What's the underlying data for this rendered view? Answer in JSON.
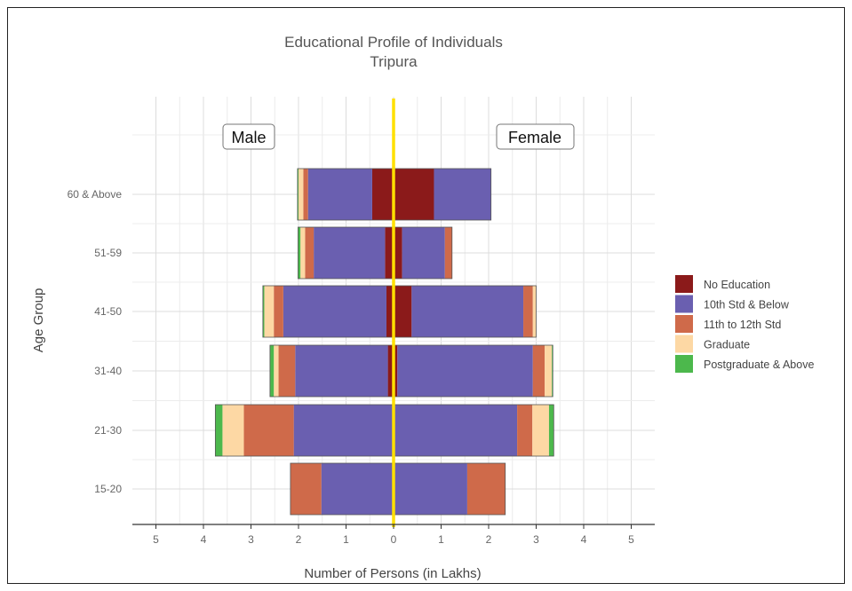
{
  "chart_data": {
    "type": "bar",
    "orientation": "horizontal-diverging",
    "title": "Educational Profile of Individuals",
    "subtitle": "Tripura",
    "xlabel": "Number of Persons (in Lakhs)",
    "ylabel": "Age Group",
    "xlim": [
      -5,
      5
    ],
    "x_ticks": [
      -5,
      -4,
      -3,
      -2,
      -1,
      0,
      1,
      2,
      3,
      4,
      5
    ],
    "x_tick_labels": [
      "5",
      "4",
      "3",
      "2",
      "1",
      "0",
      "1",
      "2",
      "3",
      "4",
      "5"
    ],
    "categories": [
      "15-20",
      "21-30",
      "31-40",
      "41-50",
      "51-59",
      "60 & Above"
    ],
    "side_labels": {
      "left": "Male",
      "right": "Female"
    },
    "legend_position": "right",
    "grid": true,
    "series": [
      {
        "name": "No Education",
        "color": "#8b1a1a",
        "male": [
          0,
          0,
          0.12,
          0.15,
          0.18,
          0.45
        ],
        "female": [
          0,
          0,
          0.08,
          0.38,
          0.18,
          0.85
        ]
      },
      {
        "name": "10th Std & Below",
        "color": "#6a5fb0",
        "male": [
          1.52,
          2.1,
          1.95,
          2.17,
          1.5,
          1.35
        ],
        "female": [
          1.55,
          2.6,
          2.85,
          2.35,
          0.9,
          1.2
        ]
      },
      {
        "name": "11th to 12th Std",
        "color": "#cf6a4a",
        "male": [
          0.65,
          1.05,
          0.35,
          0.2,
          0.18,
          0.1
        ],
        "female": [
          0.8,
          0.32,
          0.25,
          0.2,
          0.15,
          0
        ]
      },
      {
        "name": "Graduate",
        "color": "#fdd8a4",
        "male": [
          0,
          0.45,
          0.1,
          0.2,
          0.1,
          0.1
        ],
        "female": [
          0,
          0.35,
          0.15,
          0.07,
          0,
          0
        ]
      },
      {
        "name": "Postgraduate & Above",
        "color": "#4cb84c",
        "male": [
          0,
          0.15,
          0.08,
          0.03,
          0.05,
          0.02
        ],
        "female": [
          0,
          0.1,
          0.02,
          0,
          0,
          0
        ]
      }
    ],
    "center_line_color": "#ffe000"
  }
}
